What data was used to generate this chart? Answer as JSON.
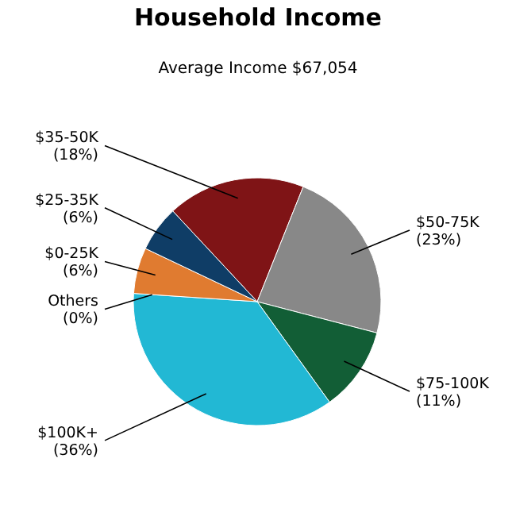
{
  "chart_data": {
    "type": "pie",
    "title": "Household Income",
    "subtitle": "Average Income  $67,054",
    "categories": [
      "$35-50K",
      "$50-75K",
      "$75-100K",
      "$100K+",
      "Others",
      "$0-25K",
      "$25-35K"
    ],
    "values": [
      18,
      23,
      11,
      36,
      0,
      6,
      6
    ],
    "value_labels": [
      "(18%)",
      "(23%)",
      "(11%)",
      "(36%)",
      "(0%)",
      "(6%)",
      "(6%)"
    ],
    "colors": [
      "#7f1416",
      "#888888",
      "#125e36",
      "#22b8d4",
      null,
      "#e07b30",
      "#0f3d66"
    ]
  }
}
